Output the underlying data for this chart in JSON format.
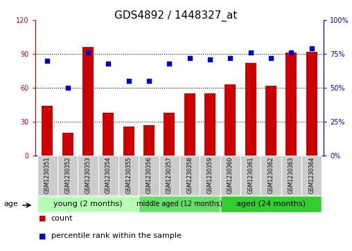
{
  "title": "GDS4892 / 1448327_at",
  "samples": [
    "GSM1230351",
    "GSM1230352",
    "GSM1230353",
    "GSM1230354",
    "GSM1230355",
    "GSM1230356",
    "GSM1230357",
    "GSM1230358",
    "GSM1230359",
    "GSM1230360",
    "GSM1230361",
    "GSM1230362",
    "GSM1230363",
    "GSM1230364"
  ],
  "counts": [
    44,
    20,
    96,
    38,
    26,
    27,
    38,
    55,
    55,
    63,
    82,
    62,
    91,
    92
  ],
  "percentiles": [
    70,
    50,
    76,
    68,
    55,
    55,
    68,
    72,
    71,
    72,
    76,
    72,
    76,
    79
  ],
  "bar_color": "#cc0000",
  "dot_color": "#0000cc",
  "ylim_left": [
    0,
    120
  ],
  "ylim_right": [
    0,
    100
  ],
  "yticks_left": [
    0,
    30,
    60,
    90,
    120
  ],
  "yticks_right": [
    0,
    25,
    50,
    75,
    100
  ],
  "ytick_labels_left": [
    "0",
    "30",
    "60",
    "90",
    "120"
  ],
  "ytick_labels_right": [
    "0%",
    "25%",
    "50%",
    "75%",
    "100%"
  ],
  "groups": [
    {
      "label": "young (2 months)",
      "start": 0,
      "end": 5,
      "color": "#b3ffb3"
    },
    {
      "label": "middle aged (12 months)",
      "start": 5,
      "end": 9,
      "color": "#66dd66"
    },
    {
      "label": "aged (24 months)",
      "start": 9,
      "end": 14,
      "color": "#33cc33"
    }
  ],
  "age_label": "age",
  "legend_items": [
    {
      "label": "count",
      "color": "#cc0000"
    },
    {
      "label": "percentile rank within the sample",
      "color": "#0000cc"
    }
  ],
  "background_color": "#ffffff",
  "title_fontsize": 11,
  "tick_fontsize": 7,
  "group_fontsize": 8,
  "legend_fontsize": 8,
  "sample_box_color": "#cccccc",
  "gridline_yticks": [
    30,
    60,
    90
  ]
}
